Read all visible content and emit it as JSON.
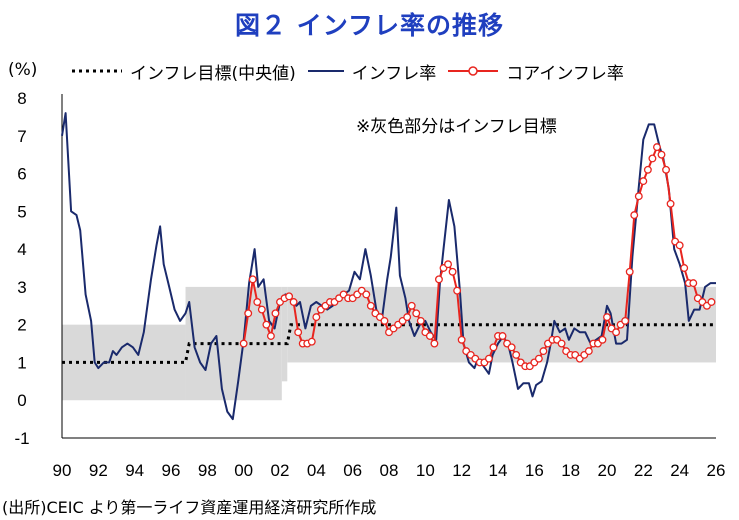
{
  "title": "図２ インフレ率の推移",
  "unit_label": "(%)",
  "note": "※灰色部分はインフレ目標",
  "source": "(出所)CEIC より第一ライフ資産運用経済研究所作成",
  "colors": {
    "title": "#1f3fbf",
    "inflation": "#1a2a6c",
    "core": "#e8251f",
    "target": "#000000",
    "band": "#d9d9d9"
  },
  "chart_data": {
    "type": "line",
    "ylim": [
      -1,
      8
    ],
    "yticks": [
      "8",
      "7",
      "6",
      "5",
      "4",
      "3",
      "2",
      "1",
      "0",
      "-1"
    ],
    "xticks": [
      "90",
      "92",
      "94",
      "96",
      "98",
      "00",
      "02",
      "04",
      "06",
      "08",
      "10",
      "12",
      "14",
      "16",
      "18",
      "20",
      "22",
      "24",
      "26"
    ],
    "xlim": [
      1990,
      2026
    ],
    "target_band": [
      {
        "x_start": 1990,
        "x_end": 1996.8,
        "low": 0,
        "high": 2
      },
      {
        "x_start": 1996.8,
        "x_end": 2002.1,
        "low": 0,
        "high": 3
      },
      {
        "x_start": 2002.1,
        "x_end": 2002.4,
        "low": 0.5,
        "high": 3
      },
      {
        "x_start": 2002.4,
        "x_end": 2026,
        "low": 1,
        "high": 3
      }
    ],
    "series": [
      {
        "name": "インフレ目標(中央値)",
        "style": "dotted",
        "points": [
          [
            1990,
            1
          ],
          [
            1996.8,
            1
          ],
          [
            1997,
            1.5
          ],
          [
            2002.4,
            1.5
          ],
          [
            2002.6,
            2
          ],
          [
            2026,
            2
          ]
        ]
      },
      {
        "name": "インフレ率",
        "style": "line",
        "points": [
          [
            1990,
            7
          ],
          [
            1990.2,
            7.6
          ],
          [
            1990.5,
            5
          ],
          [
            1990.8,
            4.9
          ],
          [
            1991,
            4.5
          ],
          [
            1991.3,
            2.8
          ],
          [
            1991.6,
            2.1
          ],
          [
            1991.8,
            1
          ],
          [
            1992,
            0.85
          ],
          [
            1992.3,
            1
          ],
          [
            1992.6,
            1
          ],
          [
            1992.8,
            1.3
          ],
          [
            1993,
            1.2
          ],
          [
            1993.3,
            1.4
          ],
          [
            1993.6,
            1.5
          ],
          [
            1993.9,
            1.4
          ],
          [
            1994.2,
            1.2
          ],
          [
            1994.5,
            1.8
          ],
          [
            1994.9,
            3.2
          ],
          [
            1995.2,
            4.1
          ],
          [
            1995.4,
            4.6
          ],
          [
            1995.6,
            3.6
          ],
          [
            1995.9,
            3
          ],
          [
            1996.2,
            2.4
          ],
          [
            1996.5,
            2.1
          ],
          [
            1996.8,
            2.3
          ],
          [
            1997,
            2.6
          ],
          [
            1997.3,
            1.4
          ],
          [
            1997.6,
            1
          ],
          [
            1997.9,
            0.8
          ],
          [
            1998.2,
            1.5
          ],
          [
            1998.5,
            1.7
          ],
          [
            1998.8,
            0.3
          ],
          [
            1999.1,
            -0.3
          ],
          [
            1999.4,
            -0.5
          ],
          [
            1999.7,
            0.5
          ],
          [
            2000,
            1.6
          ],
          [
            2000.3,
            3.1
          ],
          [
            2000.6,
            4
          ],
          [
            2000.8,
            3
          ],
          [
            2001.1,
            3.2
          ],
          [
            2001.4,
            2.1
          ],
          [
            2001.7,
            1.9
          ],
          [
            2002,
            2.6
          ],
          [
            2002.3,
            2.8
          ],
          [
            2002.6,
            2.7
          ],
          [
            2002.9,
            2.5
          ],
          [
            2003.1,
            2.6
          ],
          [
            2003.4,
            1.9
          ],
          [
            2003.7,
            2.5
          ],
          [
            2004,
            2.6
          ],
          [
            2004.3,
            2.5
          ],
          [
            2004.6,
            2.4
          ],
          [
            2004.9,
            2.5
          ],
          [
            2005.2,
            2.7
          ],
          [
            2005.5,
            2.8
          ],
          [
            2005.8,
            2.9
          ],
          [
            2006.1,
            3.4
          ],
          [
            2006.4,
            3.2
          ],
          [
            2006.7,
            4
          ],
          [
            2007,
            3.3
          ],
          [
            2007.3,
            2.4
          ],
          [
            2007.6,
            2.1
          ],
          [
            2007.9,
            3.2
          ],
          [
            2008.1,
            3.8
          ],
          [
            2008.4,
            5.1
          ],
          [
            2008.6,
            3.3
          ],
          [
            2008.9,
            2.7
          ],
          [
            2009.1,
            2.1
          ],
          [
            2009.4,
            1.7
          ],
          [
            2009.7,
            2
          ],
          [
            2010,
            2.1
          ],
          [
            2010.3,
            1.8
          ],
          [
            2010.6,
            1.6
          ],
          [
            2010.8,
            3.1
          ],
          [
            2011,
            4
          ],
          [
            2011.3,
            5.3
          ],
          [
            2011.6,
            4.6
          ],
          [
            2011.9,
            2.9
          ],
          [
            2012.1,
            1.5
          ],
          [
            2012.4,
            1
          ],
          [
            2012.7,
            0.85
          ],
          [
            2012.9,
            1.1
          ],
          [
            2013.2,
            0.9
          ],
          [
            2013.5,
            0.7
          ],
          [
            2013.7,
            1.2
          ],
          [
            2014,
            1.5
          ],
          [
            2014.3,
            1.7
          ],
          [
            2014.6,
            1.4
          ],
          [
            2014.8,
            1
          ],
          [
            2015.1,
            0.3
          ],
          [
            2015.4,
            0.45
          ],
          [
            2015.7,
            0.45
          ],
          [
            2015.9,
            0.1
          ],
          [
            2016.1,
            0.4
          ],
          [
            2016.4,
            0.5
          ],
          [
            2016.7,
            1
          ],
          [
            2016.9,
            1.5
          ],
          [
            2017.1,
            2.1
          ],
          [
            2017.4,
            1.8
          ],
          [
            2017.7,
            1.9
          ],
          [
            2017.9,
            1.6
          ],
          [
            2018.2,
            1.9
          ],
          [
            2018.5,
            1.8
          ],
          [
            2018.8,
            1.8
          ],
          [
            2019.1,
            1.5
          ],
          [
            2019.4,
            1.6
          ],
          [
            2019.7,
            1.7
          ],
          [
            2020,
            2.5
          ],
          [
            2020.2,
            2.3
          ],
          [
            2020.5,
            1.5
          ],
          [
            2020.8,
            1.5
          ],
          [
            2021.1,
            1.6
          ],
          [
            2021.4,
            3.8
          ],
          [
            2021.7,
            5.4
          ],
          [
            2022,
            6.9
          ],
          [
            2022.3,
            7.3
          ],
          [
            2022.6,
            7.3
          ],
          [
            2022.9,
            6.7
          ],
          [
            2023.1,
            6.4
          ],
          [
            2023.4,
            5.6
          ],
          [
            2023.7,
            4
          ],
          [
            2024,
            3.6
          ],
          [
            2024.3,
            3.1
          ],
          [
            2024.5,
            2.1
          ],
          [
            2024.8,
            2.4
          ],
          [
            2025.1,
            2.4
          ],
          [
            2025.4,
            3
          ],
          [
            2025.7,
            3.1
          ],
          [
            2026,
            3.1
          ]
        ]
      },
      {
        "name": "コアインフレ率",
        "style": "line-marker",
        "points": [
          [
            2000,
            1.5
          ],
          [
            2000.25,
            2.3
          ],
          [
            2000.5,
            3.2
          ],
          [
            2000.75,
            2.6
          ],
          [
            2001,
            2.4
          ],
          [
            2001.25,
            2
          ],
          [
            2001.5,
            1.7
          ],
          [
            2001.75,
            2.3
          ],
          [
            2002,
            2.6
          ],
          [
            2002.25,
            2.7
          ],
          [
            2002.5,
            2.75
          ],
          [
            2002.75,
            2.6
          ],
          [
            2003,
            1.8
          ],
          [
            2003.25,
            1.5
          ],
          [
            2003.5,
            1.5
          ],
          [
            2003.75,
            1.55
          ],
          [
            2004,
            2.2
          ],
          [
            2004.25,
            2.4
          ],
          [
            2004.5,
            2.5
          ],
          [
            2004.75,
            2.6
          ],
          [
            2005,
            2.6
          ],
          [
            2005.25,
            2.7
          ],
          [
            2005.5,
            2.8
          ],
          [
            2005.75,
            2.7
          ],
          [
            2006,
            2.7
          ],
          [
            2006.25,
            2.8
          ],
          [
            2006.5,
            2.9
          ],
          [
            2006.75,
            2.8
          ],
          [
            2007,
            2.5
          ],
          [
            2007.25,
            2.3
          ],
          [
            2007.5,
            2.2
          ],
          [
            2007.75,
            2.1
          ],
          [
            2008,
            1.8
          ],
          [
            2008.25,
            1.9
          ],
          [
            2008.5,
            2
          ],
          [
            2008.75,
            2.1
          ],
          [
            2009,
            2.2
          ],
          [
            2009.25,
            2.5
          ],
          [
            2009.5,
            2.3
          ],
          [
            2009.75,
            2.1
          ],
          [
            2010,
            1.8
          ],
          [
            2010.25,
            1.7
          ],
          [
            2010.5,
            1.5
          ],
          [
            2010.75,
            3.2
          ],
          [
            2011,
            3.5
          ],
          [
            2011.25,
            3.6
          ],
          [
            2011.5,
            3.4
          ],
          [
            2011.75,
            2.9
          ],
          [
            2012,
            1.6
          ],
          [
            2012.25,
            1.3
          ],
          [
            2012.5,
            1.2
          ],
          [
            2012.75,
            1.1
          ],
          [
            2013,
            1
          ],
          [
            2013.25,
            1
          ],
          [
            2013.5,
            1.1
          ],
          [
            2013.75,
            1.4
          ],
          [
            2014,
            1.7
          ],
          [
            2014.25,
            1.7
          ],
          [
            2014.5,
            1.5
          ],
          [
            2014.75,
            1.4
          ],
          [
            2015,
            1.2
          ],
          [
            2015.25,
            1
          ],
          [
            2015.5,
            0.9
          ],
          [
            2015.75,
            0.9
          ],
          [
            2016,
            1
          ],
          [
            2016.25,
            1.1
          ],
          [
            2016.5,
            1.3
          ],
          [
            2016.75,
            1.5
          ],
          [
            2017,
            1.6
          ],
          [
            2017.25,
            1.6
          ],
          [
            2017.5,
            1.5
          ],
          [
            2017.75,
            1.3
          ],
          [
            2018,
            1.2
          ],
          [
            2018.25,
            1.2
          ],
          [
            2018.5,
            1.1
          ],
          [
            2018.75,
            1.2
          ],
          [
            2019,
            1.3
          ],
          [
            2019.25,
            1.5
          ],
          [
            2019.5,
            1.5
          ],
          [
            2019.75,
            1.6
          ],
          [
            2020,
            2.2
          ],
          [
            2020.25,
            1.9
          ],
          [
            2020.5,
            1.8
          ],
          [
            2020.75,
            2
          ],
          [
            2021,
            2.1
          ],
          [
            2021.25,
            3.4
          ],
          [
            2021.5,
            4.9
          ],
          [
            2021.75,
            5.4
          ],
          [
            2022,
            5.8
          ],
          [
            2022.25,
            6.1
          ],
          [
            2022.5,
            6.4
          ],
          [
            2022.75,
            6.7
          ],
          [
            2023,
            6.5
          ],
          [
            2023.25,
            6.1
          ],
          [
            2023.5,
            5.2
          ],
          [
            2023.75,
            4.2
          ],
          [
            2024,
            4.1
          ],
          [
            2024.25,
            3.5
          ],
          [
            2024.5,
            3.1
          ],
          [
            2024.75,
            3.1
          ],
          [
            2025,
            2.7
          ],
          [
            2025.25,
            2.6
          ],
          [
            2025.5,
            2.5
          ],
          [
            2025.75,
            2.6
          ]
        ]
      }
    ]
  }
}
